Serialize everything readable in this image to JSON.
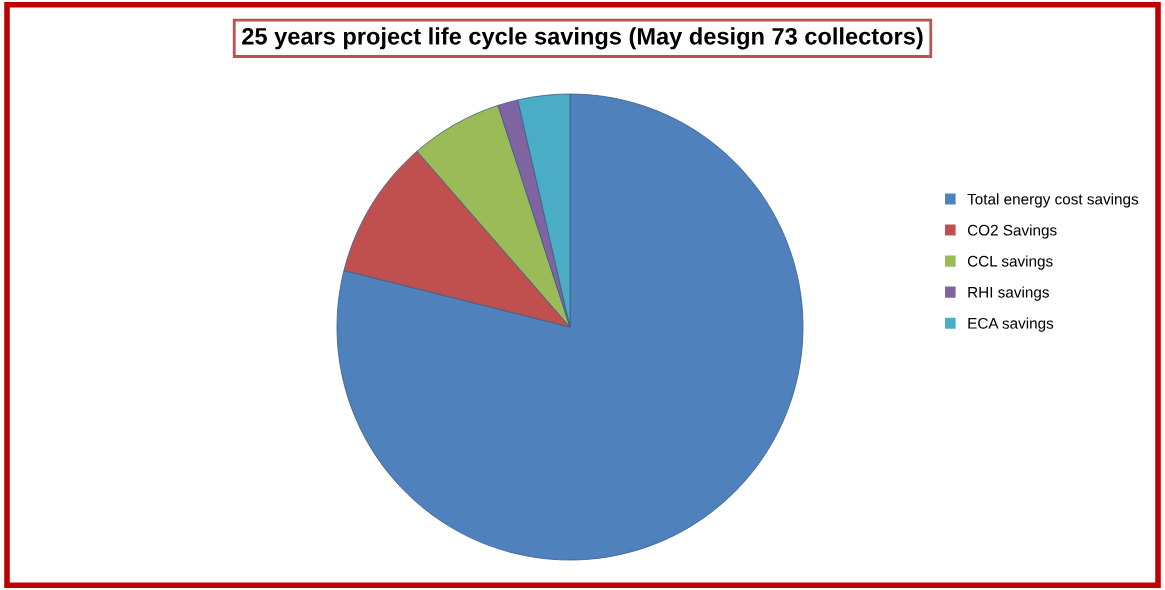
{
  "chart_data": {
    "type": "pie",
    "title": "25 years project life cycle savings (May design 73 collectors)",
    "categories": [
      "Total energy cost savings",
      "CO2 Savings",
      "CCL savings",
      "RHI savings",
      "ECA savings"
    ],
    "values": [
      78.9,
      9.7,
      6.4,
      1.4,
      3.6
    ],
    "colors": [
      "#4f81bd",
      "#c0504d",
      "#9bbb59",
      "#8064a2",
      "#4bacc6"
    ],
    "legend": "right"
  }
}
